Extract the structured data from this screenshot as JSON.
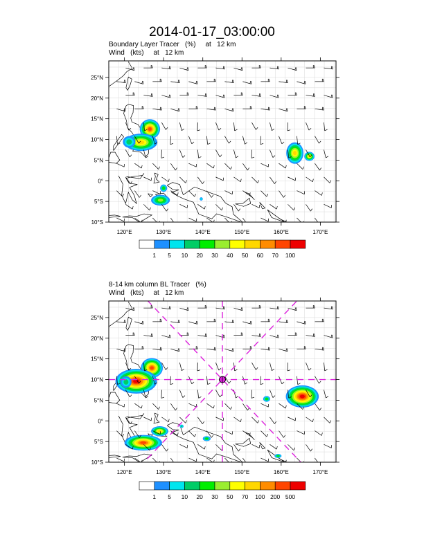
{
  "title": "2014-01-17_03:00:00",
  "panels": [
    {
      "labels": [
        "Boundary Layer Tracer   (%)     at   12 km",
        "Wind   (kts)     at   12 km"
      ],
      "colorbar": {
        "labels": [
          "1",
          "5",
          "10",
          "20",
          "30",
          "40",
          "50",
          "60",
          "70",
          "100"
        ],
        "colors": [
          "#ffffff",
          "#1e90ff",
          "#00e5ee",
          "#00cd66",
          "#00ee00",
          "#9aee30",
          "#ffff00",
          "#ffd700",
          "#ff8c00",
          "#ff4500",
          "#ee0000"
        ]
      }
    },
    {
      "labels": [
        "8-14 km column BL Tracer   (%)",
        "Wind   (kts)     at   12 km"
      ],
      "colorbar": {
        "labels": [
          "1",
          "5",
          "10",
          "20",
          "30",
          "50",
          "70",
          "100",
          "200",
          "500"
        ],
        "colors": [
          "#ffffff",
          "#1e90ff",
          "#00e5ee",
          "#00cd66",
          "#00ee00",
          "#9aee30",
          "#ffff00",
          "#ffd700",
          "#ff8c00",
          "#ff4500",
          "#ee0000"
        ]
      }
    }
  ],
  "map": {
    "lon_range": [
      116,
      174
    ],
    "lat_range": [
      -10,
      29
    ],
    "lon_ticks": [
      120,
      130,
      140,
      150,
      160,
      170
    ],
    "lon_tick_labels": [
      "120°E",
      "130°E",
      "140°E",
      "150°E",
      "160°E",
      "170°E"
    ],
    "lat_ticks": [
      -10,
      -5,
      0,
      5,
      10,
      15,
      20,
      25
    ],
    "lat_tick_labels": [
      "10°S",
      "5°S",
      "0°",
      "5°N",
      "10°N",
      "15°N",
      "20°N",
      "25°N"
    ],
    "marker_center": {
      "lon": 145,
      "lat": 10
    },
    "marker_color": "#dd22dd"
  }
}
